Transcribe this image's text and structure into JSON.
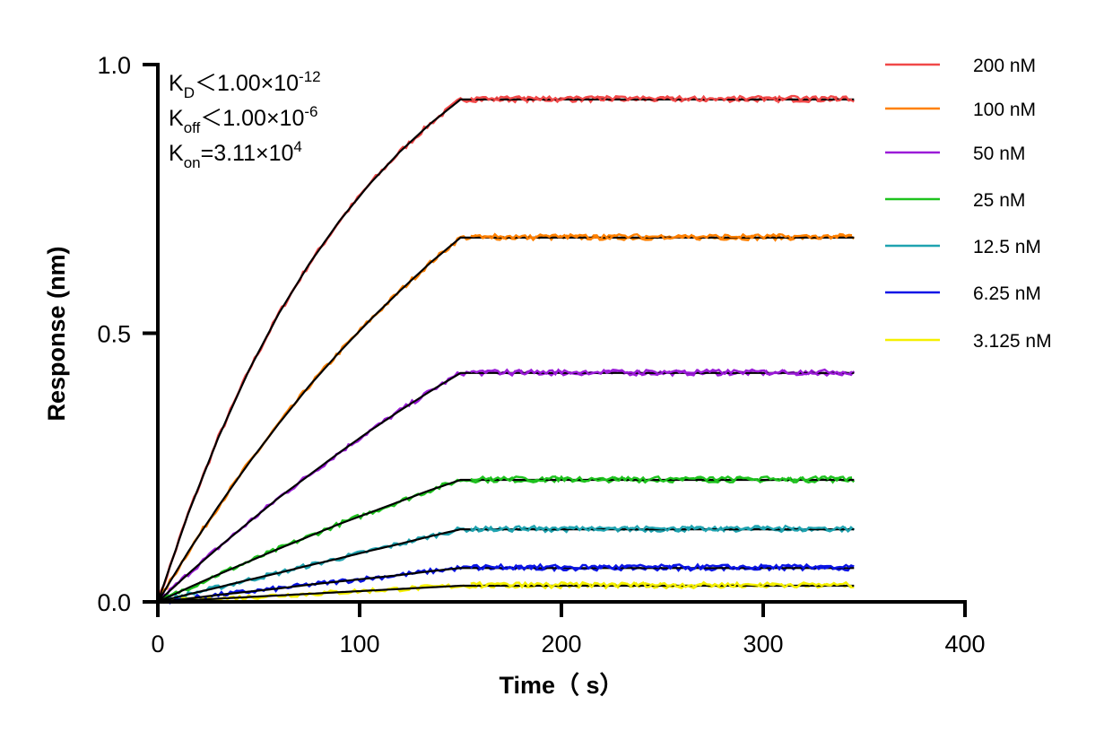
{
  "chart_data": {
    "type": "line",
    "xlabel": "Time（ s）",
    "ylabel": "Response (nm)",
    "xlim": [
      0,
      400
    ],
    "ylim": [
      0,
      1.0
    ],
    "xticks": [
      "0",
      "100",
      "200",
      "300",
      "400"
    ],
    "yticks": [
      "0.0",
      "0.5",
      "1.0"
    ],
    "grid": false,
    "legend_position": "right",
    "annotations": [
      {
        "main": "K",
        "sub": "D",
        "rel": "＜1.00×10",
        "sup": "-12"
      },
      {
        "main": "K",
        "sub": "off",
        "rel": "＜1.00×10",
        "sup": "-6"
      },
      {
        "main": "K",
        "sub": "on",
        "rel": "=3.11×10",
        "sup": "4"
      }
    ],
    "fit_color": "#000000",
    "x": [
      0,
      15,
      30,
      45,
      60,
      75,
      90,
      105,
      120,
      135,
      150,
      200,
      250,
      300,
      345
    ],
    "series": [
      {
        "name": "200 nM",
        "color": "#f04848",
        "values": [
          0,
          0.164,
          0.306,
          0.43,
          0.537,
          0.629,
          0.709,
          0.778,
          0.838,
          0.89,
          0.935,
          0.935,
          0.935,
          0.935,
          0.935
        ]
      },
      {
        "name": "100 nM",
        "color": "#ff8000",
        "values": [
          0,
          0.093,
          0.178,
          0.258,
          0.332,
          0.402,
          0.465,
          0.524,
          0.579,
          0.631,
          0.678,
          0.678,
          0.678,
          0.678,
          0.678
        ]
      },
      {
        "name": "50 nM",
        "color": "#9b1bd8",
        "values": [
          0,
          0.052,
          0.101,
          0.148,
          0.194,
          0.236,
          0.278,
          0.318,
          0.356,
          0.392,
          0.426,
          0.426,
          0.426,
          0.426,
          0.426
        ]
      },
      {
        "name": "25 nM",
        "color": "#1ec31e",
        "values": [
          0,
          0.026,
          0.051,
          0.075,
          0.099,
          0.122,
          0.145,
          0.166,
          0.187,
          0.208,
          0.227,
          0.227,
          0.227,
          0.227,
          0.227
        ]
      },
      {
        "name": "12.5 nM",
        "color": "#1fa3b0",
        "values": [
          0,
          0.014,
          0.027,
          0.041,
          0.054,
          0.068,
          0.081,
          0.095,
          0.108,
          0.122,
          0.135,
          0.135,
          0.135,
          0.135,
          0.135
        ]
      },
      {
        "name": "6.25 nM",
        "color": "#0a14e6",
        "values": [
          0,
          0.006,
          0.013,
          0.019,
          0.025,
          0.032,
          0.038,
          0.044,
          0.05,
          0.057,
          0.063,
          0.063,
          0.063,
          0.063,
          0.063
        ]
      },
      {
        "name": "3.125 nM",
        "color": "#f5f000",
        "values": [
          0,
          0.003,
          0.006,
          0.009,
          0.012,
          0.015,
          0.018,
          0.021,
          0.024,
          0.027,
          0.03,
          0.03,
          0.03,
          0.03,
          0.03
        ]
      }
    ]
  }
}
